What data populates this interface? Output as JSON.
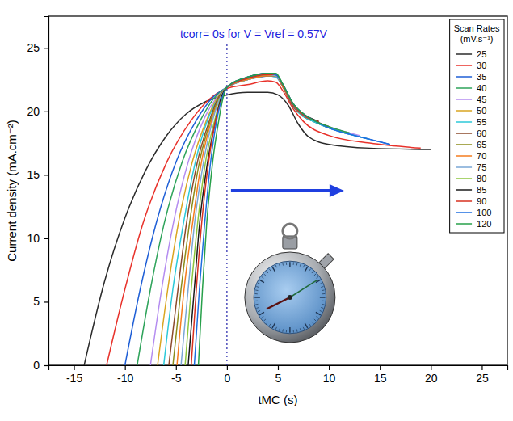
{
  "chart_data": {
    "type": "line",
    "x_label": "tMC (s)",
    "y_label": "Current density (mA.cm⁻²)",
    "annotation": {
      "text": "tcorr= 0s for V = Vref = 0.57V",
      "x": 0
    },
    "legend_title": "Scan Rates (mV.s⁻¹)",
    "legend": "upper right",
    "grid": false,
    "xlim": [
      -17.5,
      27.5
    ],
    "ylim": [
      0,
      27.5
    ],
    "xticks": [
      -15,
      -10,
      -5,
      0,
      5,
      10,
      15,
      20,
      25
    ],
    "yticks": [
      0,
      5,
      10,
      15,
      20,
      25
    ],
    "series": [
      {
        "name": "25",
        "color": "#2b2b2b",
        "x": [
          -14,
          -12,
          -10,
          -8,
          -6,
          -4,
          -2,
          0,
          2,
          4,
          5,
          6,
          7,
          8,
          10,
          14,
          20
        ],
        "values": [
          0,
          6.6,
          11.6,
          15.3,
          18,
          19.8,
          20.8,
          21.3,
          21.5,
          21.5,
          21.3,
          20.5,
          19,
          18,
          17.4,
          17.1,
          17
        ]
      },
      {
        "name": "30",
        "color": "#e8322b",
        "x": [
          -11.8,
          -10,
          -8.3,
          -5.9,
          -3.5,
          -1.8,
          0,
          2,
          4,
          4.8,
          5.5,
          6.5,
          7.5,
          10,
          14,
          19
        ],
        "values": [
          0,
          6,
          11,
          16,
          19.3,
          20.9,
          21.8,
          22.1,
          22.4,
          22.3,
          21.6,
          20.2,
          19.2,
          18.1,
          17.5,
          17.1
        ]
      },
      {
        "name": "35",
        "color": "#1f5fd6",
        "x": [
          -10,
          -8.5,
          -7,
          -5,
          -3,
          -1.5,
          0,
          2,
          4,
          4.8,
          5.5,
          6.5,
          7.5,
          8.5,
          10,
          12,
          14,
          16
        ],
        "values": [
          0,
          6,
          11,
          16,
          19.3,
          21,
          21.9,
          22.5,
          22.8,
          22.9,
          22,
          20.4,
          19.6,
          19.2,
          18.7,
          18.2,
          17.8,
          17.4
        ]
      },
      {
        "name": "40",
        "color": "#2ea35a",
        "x": [
          -8.8,
          -7.5,
          -6.2,
          -4.4,
          -2.6,
          -1.3,
          0,
          2,
          4,
          4.8,
          5.5,
          6.5,
          7.5,
          8.5,
          10,
          12
        ],
        "values": [
          0,
          6,
          11,
          16,
          19.3,
          21,
          21.9,
          22.5,
          22.8,
          22.8,
          21.9,
          20.4,
          19.6,
          19.2,
          18.7,
          18.3
        ]
      },
      {
        "name": "45",
        "color": "#b48cf0",
        "x": [
          -7.5,
          -6.4,
          -5.3,
          -3.8,
          -2.3,
          -1.1,
          0,
          2,
          4,
          4.8,
          5.5,
          6.5,
          7.5,
          8.5,
          10,
          13
        ],
        "values": [
          0,
          6,
          11,
          16,
          19.3,
          21,
          21.9,
          22.5,
          22.8,
          22.7,
          21.9,
          20.4,
          19.7,
          19.3,
          18.8,
          18.1
        ]
      },
      {
        "name": "50",
        "color": "#d9a521",
        "x": [
          -6.8,
          -5.8,
          -4.8,
          -3.4,
          -2,
          -1,
          0,
          2,
          4,
          4.8,
          5.5,
          6.5,
          7.5,
          8.5
        ],
        "values": [
          0,
          6,
          11,
          16,
          19.3,
          21,
          21.9,
          22.6,
          22.9,
          22.8,
          22,
          20.5,
          19.7,
          19.3
        ]
      },
      {
        "name": "55",
        "color": "#2cc9d9",
        "x": [
          -6.2,
          -5.3,
          -4.3,
          -3.1,
          -1.9,
          -0.9,
          0,
          2,
          4,
          4.8,
          5.5,
          6.5,
          7.5,
          8.5,
          10,
          12,
          14
        ],
        "values": [
          0,
          6,
          11,
          16,
          19.3,
          21,
          21.9,
          22.5,
          22.8,
          22.7,
          21.9,
          20.4,
          19.6,
          19.2,
          18.7,
          18.2,
          17.8
        ]
      },
      {
        "name": "60",
        "color": "#8b4a2b",
        "x": [
          -5.7,
          -4.8,
          -4,
          -2.9,
          -1.7,
          -0.9,
          0,
          2,
          4,
          4.8,
          5.5,
          6.5,
          7.5,
          8.5,
          10
        ],
        "values": [
          0,
          6,
          11,
          16,
          19.3,
          21,
          21.9,
          22.6,
          22.8,
          22.8,
          21.9,
          20.4,
          19.7,
          19.3,
          18.8
        ]
      },
      {
        "name": "65",
        "color": "#8c8c1a",
        "x": [
          -5.3,
          -4.5,
          -3.7,
          -2.7,
          -1.6,
          -0.8,
          0,
          2,
          4,
          4.8,
          5.5,
          6.5,
          7.5,
          9
        ],
        "values": [
          0,
          6,
          11,
          16,
          19.3,
          21,
          21.9,
          22.6,
          22.9,
          22.8,
          22,
          20.5,
          19.7,
          19.2
        ]
      },
      {
        "name": "70",
        "color": "#f57d1f",
        "x": [
          -4.9,
          -4.2,
          -3.4,
          -2.5,
          -1.5,
          -0.7,
          0,
          2,
          4,
          4.8,
          5.5,
          6.5,
          8
        ],
        "values": [
          0,
          6,
          11,
          16,
          19.3,
          21,
          21.9,
          22.5,
          22.8,
          22.8,
          21.9,
          20.5,
          19.5
        ]
      },
      {
        "name": "75",
        "color": "#7aa7d6",
        "x": [
          -4.5,
          -3.8,
          -3.2,
          -2.3,
          -1.4,
          -0.7,
          0,
          2,
          4,
          4.8,
          5.5,
          6.5,
          7.5,
          8.5
        ],
        "values": [
          0,
          6,
          11,
          16,
          19.3,
          21,
          21.9,
          22.6,
          22.9,
          22.8,
          22,
          20.5,
          19.7,
          19.3
        ]
      },
      {
        "name": "80",
        "color": "#8dc63f",
        "x": [
          -4.1,
          -3.5,
          -2.9,
          -2.1,
          -1.2,
          -0.6,
          0,
          2,
          4,
          4.8,
          5.5,
          6.5,
          8
        ],
        "values": [
          0,
          6,
          11,
          16,
          19.3,
          21,
          21.9,
          22.6,
          22.9,
          22.9,
          22,
          20.6,
          19.5
        ]
      },
      {
        "name": "85",
        "color": "#1a1a1a",
        "x": [
          -3.8,
          -3.2,
          -2.7,
          -1.9,
          -1.1,
          -0.6,
          0,
          2,
          4,
          4.8,
          5.5,
          6.5,
          7.5,
          9
        ],
        "values": [
          0,
          6,
          11,
          16,
          19.3,
          21,
          21.9,
          22.7,
          23,
          22.9,
          22.1,
          20.6,
          19.8,
          19.2
        ]
      },
      {
        "name": "90",
        "color": "#d7301f",
        "x": [
          -3.5,
          -3,
          -2.5,
          -1.8,
          -1.1,
          -0.5,
          0,
          2,
          4,
          4.8,
          5.5,
          6.5,
          7.5,
          9
        ],
        "values": [
          0,
          6,
          11,
          16,
          19.3,
          21,
          21.9,
          22.6,
          22.9,
          22.9,
          22,
          20.5,
          19.7,
          19.2
        ]
      },
      {
        "name": "100",
        "color": "#1e6ee0",
        "x": [
          -3.2,
          -2.7,
          -2.2,
          -1.6,
          -1,
          -0.5,
          0,
          2,
          4,
          4.8,
          5.5,
          6.5,
          7.5,
          8.5,
          10,
          12,
          14,
          16
        ],
        "values": [
          0,
          6,
          11,
          16,
          19.3,
          21,
          21.9,
          22.7,
          23,
          22.9,
          22.1,
          20.6,
          19.8,
          19.3,
          18.7,
          18.2,
          17.8,
          17.4
        ]
      },
      {
        "name": "120",
        "color": "#27a04a",
        "x": [
          -2.8,
          -2.4,
          -2,
          -1.4,
          -0.8,
          -0.4,
          0,
          2,
          4,
          4.8,
          5.5,
          6.5,
          7.5,
          8.5,
          10,
          12
        ],
        "values": [
          0,
          6,
          11,
          16,
          19.3,
          21,
          21.9,
          22.7,
          23,
          23,
          22.1,
          20.6,
          19.8,
          19.3,
          18.8,
          18.3
        ]
      }
    ]
  }
}
